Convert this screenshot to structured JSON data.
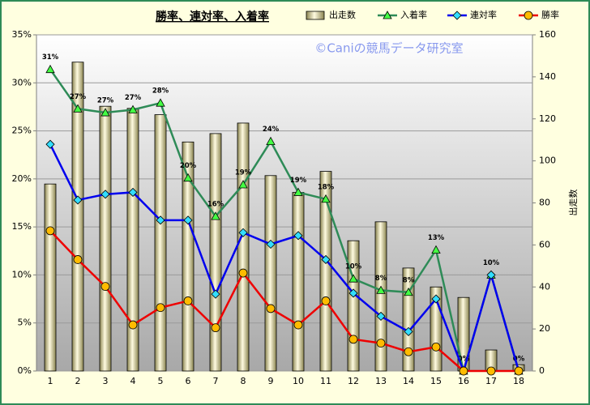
{
  "chart_data": {
    "type": "bar",
    "title": "勝率、連対率、入着率",
    "annotation": "©Caniの競馬データ研究室",
    "y2label": "出走数",
    "categories": [
      "1",
      "2",
      "3",
      "4",
      "5",
      "6",
      "7",
      "8",
      "9",
      "10",
      "11",
      "12",
      "13",
      "14",
      "15",
      "16",
      "17",
      "18"
    ],
    "ylim": [
      0,
      35
    ],
    "yticks": [
      {
        "value": 0,
        "label": "0%"
      },
      {
        "value": 5,
        "label": "5%"
      },
      {
        "value": 10,
        "label": "10%"
      },
      {
        "value": 15,
        "label": "15%"
      },
      {
        "value": 20,
        "label": "20%"
      },
      {
        "value": 25,
        "label": "25%"
      },
      {
        "value": 30,
        "label": "30%"
      },
      {
        "value": 35,
        "label": "35%"
      }
    ],
    "y2lim": [
      0,
      160
    ],
    "y2ticks": [
      0,
      20,
      40,
      60,
      80,
      100,
      120,
      140,
      160
    ],
    "grid": true,
    "series": [
      {
        "name": "出走数",
        "type": "bar",
        "axis": "y2",
        "color": "#d8d49c",
        "values": [
          89,
          147,
          126,
          125,
          122,
          109,
          113,
          118,
          93,
          85,
          95,
          62,
          71,
          49,
          40,
          35,
          10,
          3
        ]
      },
      {
        "name": "入着率",
        "type": "line",
        "marker": "triangle",
        "color": "#2e8b57",
        "values": [
          31.4,
          27.3,
          26.9,
          27.2,
          27.9,
          20.1,
          16.1,
          19.4,
          23.9,
          18.6,
          17.9,
          9.6,
          8.4,
          8.2,
          12.6,
          0,
          10,
          0
        ],
        "value_labels": [
          "31%",
          "27%",
          "27%",
          "27%",
          "28%",
          "20%",
          "16%",
          "19%",
          "24%",
          "19%",
          "18%",
          "10%",
          "8%",
          "8%",
          "13%",
          "0%",
          "10%",
          "0%"
        ]
      },
      {
        "name": "連対率",
        "type": "line",
        "marker": "diamond",
        "color": "#0000ee",
        "values": [
          23.6,
          17.8,
          18.4,
          18.6,
          15.7,
          15.7,
          8.0,
          14.4,
          13.2,
          14.1,
          11.6,
          8.1,
          5.7,
          4.1,
          7.5,
          0,
          10,
          0
        ]
      },
      {
        "name": "勝率",
        "type": "line",
        "marker": "circle",
        "color": "#ee0000",
        "values": [
          14.6,
          11.6,
          8.8,
          4.8,
          6.6,
          7.3,
          4.5,
          10.2,
          6.5,
          4.8,
          7.3,
          3.3,
          2.9,
          2.0,
          2.5,
          0,
          0,
          0
        ]
      }
    ]
  }
}
